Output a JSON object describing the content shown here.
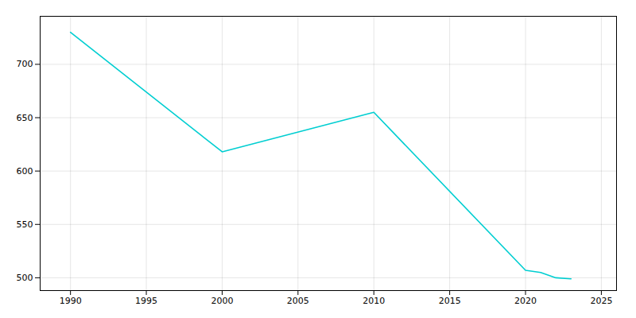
{
  "chart_data": {
    "type": "line",
    "x": [
      1990,
      2000,
      2010,
      2020,
      2021,
      2022,
      2023
    ],
    "values": [
      730,
      618,
      655,
      507,
      505,
      500,
      499
    ],
    "color": "#00CED1",
    "xlim": [
      1988,
      2026
    ],
    "ylim": [
      488,
      745
    ],
    "xticks": [
      1990,
      1995,
      2000,
      2005,
      2010,
      2015,
      2020,
      2025
    ],
    "yticks": [
      500,
      550,
      600,
      650,
      700
    ],
    "grid": true
  }
}
